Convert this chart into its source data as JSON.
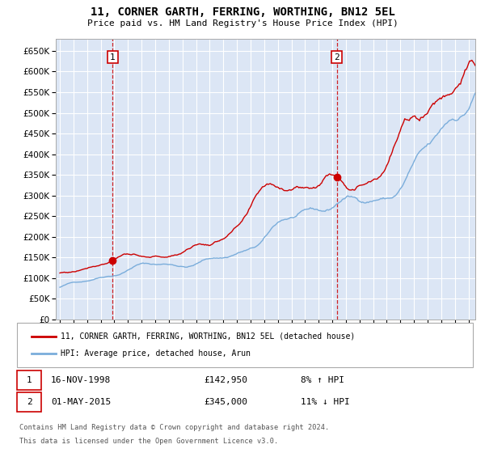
{
  "title": "11, CORNER GARTH, FERRING, WORTHING, BN12 5EL",
  "subtitle": "Price paid vs. HM Land Registry's House Price Index (HPI)",
  "ylim": [
    0,
    680000
  ],
  "yticks": [
    0,
    50000,
    100000,
    150000,
    200000,
    250000,
    300000,
    350000,
    400000,
    450000,
    500000,
    550000,
    600000,
    650000
  ],
  "xlim_start": 1994.7,
  "xlim_end": 2025.5,
  "background_color": "#dce6f5",
  "grid_color": "#ffffff",
  "red_line_color": "#cc0000",
  "blue_line_color": "#7aaddb",
  "purchase1_date": 1998.88,
  "purchase1_price": 142950,
  "purchase2_date": 2015.33,
  "purchase2_price": 345000,
  "legend_label_red": "11, CORNER GARTH, FERRING, WORTHING, BN12 5EL (detached house)",
  "legend_label_blue": "HPI: Average price, detached house, Arun",
  "fn_date1": "16-NOV-1998",
  "fn_price1": "£142,950",
  "fn_pct1": "8% ↑ HPI",
  "fn_date2": "01-MAY-2015",
  "fn_price2": "£345,000",
  "fn_pct2": "11% ↓ HPI",
  "footnote3": "Contains HM Land Registry data © Crown copyright and database right 2024.",
  "footnote4": "This data is licensed under the Open Government Licence v3.0."
}
